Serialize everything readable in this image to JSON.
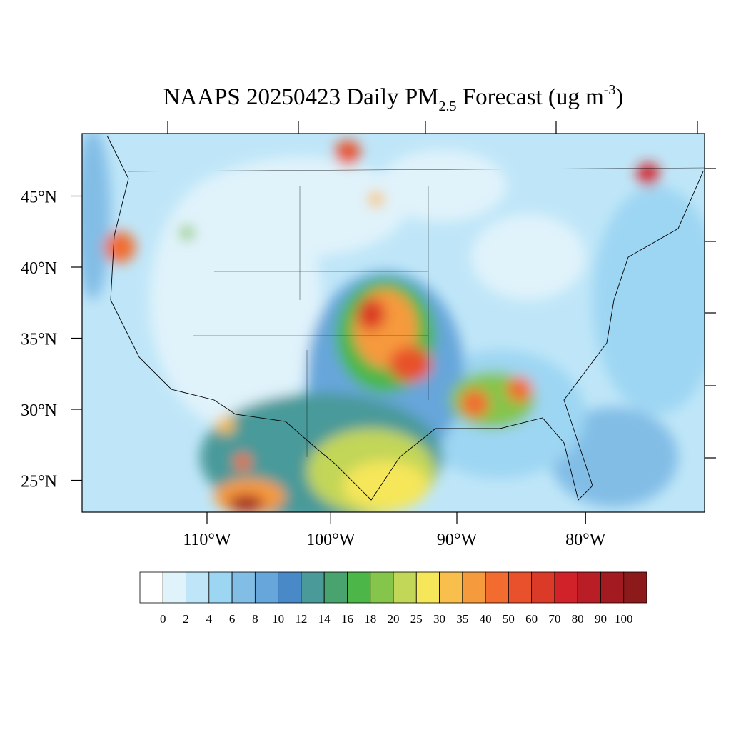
{
  "title": {
    "main": "NAAPS 20250423 Daily PM",
    "sub": "2.5",
    "mid": " Forecast (ug m",
    "sup": "-3",
    "end": ")"
  },
  "lat_ticks": [
    {
      "value": 45,
      "label": "45°N"
    },
    {
      "value": 40,
      "label": "40°N"
    },
    {
      "value": 35,
      "label": "35°N"
    },
    {
      "value": 30,
      "label": "30°N"
    },
    {
      "value": 25,
      "label": "25°N"
    }
  ],
  "lon_ticks": [
    {
      "value": -110,
      "label": "110°W"
    },
    {
      "value": -100,
      "label": "100°W"
    },
    {
      "value": -90,
      "label": "90°W"
    },
    {
      "value": -80,
      "label": "80°W"
    }
  ],
  "colorbar": {
    "levels": [
      0,
      2,
      4,
      6,
      8,
      10,
      12,
      14,
      16,
      18,
      20,
      25,
      30,
      35,
      40,
      50,
      60,
      70,
      80,
      90,
      100
    ],
    "colors": [
      "#ffffff",
      "#e0f3fb",
      "#bfe6f8",
      "#9dd6f3",
      "#82bde6",
      "#66a6da",
      "#4a89c8",
      "#4a9a9a",
      "#49a36f",
      "#4cb748",
      "#85c54b",
      "#c2d658",
      "#f5e65a",
      "#f8bf4d",
      "#f69a3e",
      "#f26c2f",
      "#e8512b",
      "#dc3a28",
      "#d1222a",
      "#b91d26",
      "#a31a21",
      "#8c1a1b"
    ]
  }
}
